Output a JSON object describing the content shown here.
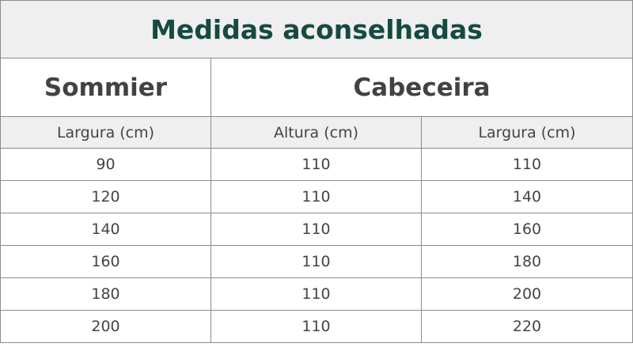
{
  "title": "Medidas aconselhadas",
  "groups": {
    "sommier": "Sommier",
    "cabeceira": "Cabeceira"
  },
  "columns": [
    "Largura (cm)",
    "Altura (cm)",
    "Largura (cm)"
  ],
  "rows": [
    [
      "90",
      "110",
      "110"
    ],
    [
      "120",
      "110",
      "140"
    ],
    [
      "140",
      "110",
      "160"
    ],
    [
      "160",
      "110",
      "180"
    ],
    [
      "180",
      "110",
      "200"
    ],
    [
      "200",
      "110",
      "220"
    ]
  ],
  "colors": {
    "title": "#164a40",
    "header_bg": "#efefef",
    "border": "#8c8c8c"
  }
}
